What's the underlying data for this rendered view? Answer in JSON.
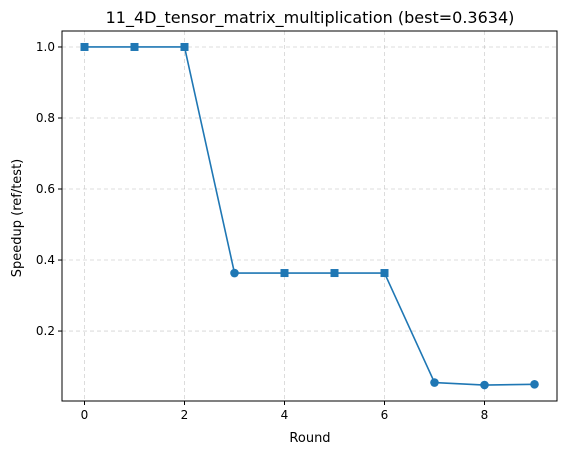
{
  "chart_data": {
    "type": "line",
    "title": "11_4D_tensor_matrix_multiplication (best=0.3634)",
    "xlabel": "Round",
    "ylabel": "Speedup (ref/test)",
    "x": [
      0,
      1,
      2,
      3,
      4,
      5,
      6,
      7,
      8,
      9
    ],
    "series": [
      {
        "values": [
          1.0,
          1.0,
          1.0,
          0.3634,
          0.3634,
          0.3634,
          0.3634,
          0.055,
          0.048,
          0.05
        ],
        "markers": [
          "square",
          "square",
          "square",
          "circle",
          "square",
          "square",
          "square",
          "circle",
          "circle",
          "circle"
        ],
        "color": "#1f77b4"
      }
    ],
    "xlim": [
      -0.45,
      9.45
    ],
    "ylim": [
      0.003,
      1.045
    ],
    "xticks": [
      0,
      2,
      4,
      6,
      8
    ],
    "xtick_labels": [
      "0",
      "2",
      "4",
      "6",
      "8"
    ],
    "yticks": [
      0.2,
      0.4,
      0.6,
      0.8,
      1.0
    ],
    "ytick_labels": [
      "0.2",
      "0.4",
      "0.6",
      "0.8",
      "1.0"
    ],
    "grid": true
  }
}
